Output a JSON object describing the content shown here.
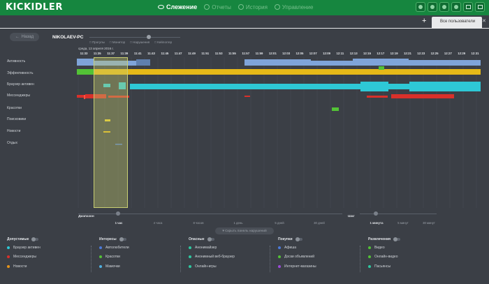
{
  "app": {
    "logo": "KICKIDLER",
    "nav": [
      {
        "label": "Слежение",
        "active": true,
        "icon": "eye-icon"
      },
      {
        "label": "Отчеты",
        "active": false,
        "icon": "chart-icon"
      },
      {
        "label": "История",
        "active": false,
        "icon": "history-icon"
      },
      {
        "label": "Управление",
        "active": false,
        "icon": "gear-icon"
      }
    ],
    "user_tab": "Все пользователи",
    "plus": "+",
    "close": "✕"
  },
  "toolbar": {
    "back_label": "Назад",
    "pc_name": "NIKOLAEV-PC",
    "filters": [
      "Прогулы",
      "Монитор",
      "Нарушения",
      "Кейлоггер"
    ],
    "date": "среда, 13 апреля 2016 г."
  },
  "chart_data": {
    "type": "timeline",
    "times": [
      "11:33",
      "11:35",
      "11:37",
      "11:39",
      "11:41",
      "11:43",
      "11:45",
      "11:47",
      "11:49",
      "11:51",
      "11:53",
      "11:55",
      "11:57",
      "11:59",
      "12:01",
      "12:03",
      "12:05",
      "12:07",
      "12:09",
      "12:11",
      "12:13",
      "12:15",
      "12:17",
      "12:19",
      "12:21",
      "12:23",
      "12:25",
      "12:27",
      "12:29",
      "12:31"
    ],
    "rows": [
      {
        "name": "Активность",
        "color": "#7fa4d9"
      },
      {
        "name": "Эффективность",
        "color": "#e6b918"
      },
      {
        "name": "Браузер активен",
        "color": "#2ec8d6"
      },
      {
        "name": "Мессенджеры",
        "color": "#d9302a"
      },
      {
        "name": "Красотки",
        "color": "#53c236"
      },
      {
        "name": "Поисковики",
        "color": "#e6c82a"
      },
      {
        "name": "Новости",
        "color": "#e6b918"
      },
      {
        "name": "Отдых",
        "color": "#4b7ad9"
      }
    ]
  },
  "range": {
    "label": "Диапазон",
    "ticks": [
      "1 час",
      "4 часа",
      "8 часов",
      "1 день",
      "5 дней",
      "30 дней"
    ],
    "step_label": "Шаг",
    "step_ticks": [
      "1 минута",
      "5 минут",
      "30 минут"
    ]
  },
  "hide_panel_label": "Скрыть панель нарушений",
  "legend": [
    {
      "title": "Допустимые",
      "items": [
        {
          "label": "Браузер активен",
          "color": "#2ec8d6"
        },
        {
          "label": "Мессенджеры",
          "color": "#d9302a"
        },
        {
          "label": "Новости",
          "color": "#e6941a"
        }
      ]
    },
    {
      "title": "Интересы",
      "items": [
        {
          "label": "Автолюбители",
          "color": "#4b7ad9"
        },
        {
          "label": "Красотки",
          "color": "#53c236"
        },
        {
          "label": "Мамочки",
          "color": "#4fb0e0"
        }
      ]
    },
    {
      "title": "Опасные",
      "items": [
        {
          "label": "Анонимайзер",
          "color": "#2ec8a0"
        },
        {
          "label": "Анонимный веб-браузер",
          "color": "#2ec8a0"
        },
        {
          "label": "Онлайн-игры",
          "color": "#2ec8a0"
        }
      ]
    },
    {
      "title": "Покупки",
      "items": [
        {
          "label": "Афиша",
          "color": "#4b7ad9"
        },
        {
          "label": "Доски объявлений",
          "color": "#53c236"
        },
        {
          "label": "Интернет-магазины",
          "color": "#9b4bd9"
        }
      ]
    },
    {
      "title": "Развлечения",
      "items": [
        {
          "label": "Видео",
          "color": "#53c236"
        },
        {
          "label": "Онлайн-видео",
          "color": "#53c236"
        },
        {
          "label": "Пасьянсы",
          "color": "#2ec8a0"
        }
      ]
    }
  ]
}
